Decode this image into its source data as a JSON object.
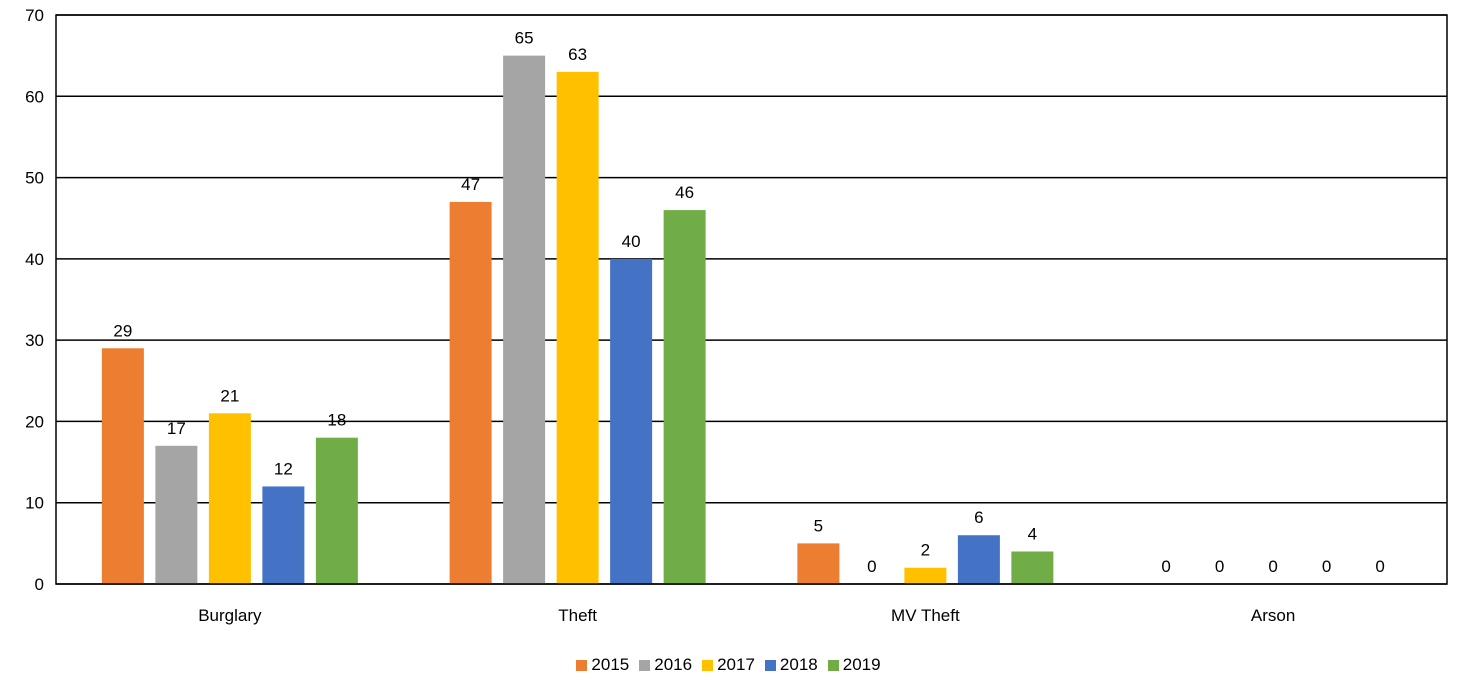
{
  "chart_data": {
    "type": "bar",
    "categories": [
      "Burglary",
      "Theft",
      "MV Theft",
      "Arson"
    ],
    "series": [
      {
        "name": "2015",
        "color": "#ED7D31",
        "values": [
          29,
          47,
          5,
          0
        ]
      },
      {
        "name": "2016",
        "color": "#A5A5A5",
        "values": [
          17,
          65,
          0,
          0
        ]
      },
      {
        "name": "2017",
        "color": "#FFC000",
        "values": [
          21,
          63,
          2,
          0
        ]
      },
      {
        "name": "2018",
        "color": "#4472C4",
        "values": [
          12,
          40,
          6,
          0
        ]
      },
      {
        "name": "2019",
        "color": "#70AD47",
        "values": [
          18,
          46,
          4,
          0
        ]
      }
    ],
    "ylim": [
      0,
      70
    ],
    "yticks": [
      0,
      10,
      20,
      30,
      40,
      50,
      60,
      70
    ],
    "grid": true,
    "legend": "bottom",
    "title": "",
    "xlabel": "",
    "ylabel": ""
  }
}
